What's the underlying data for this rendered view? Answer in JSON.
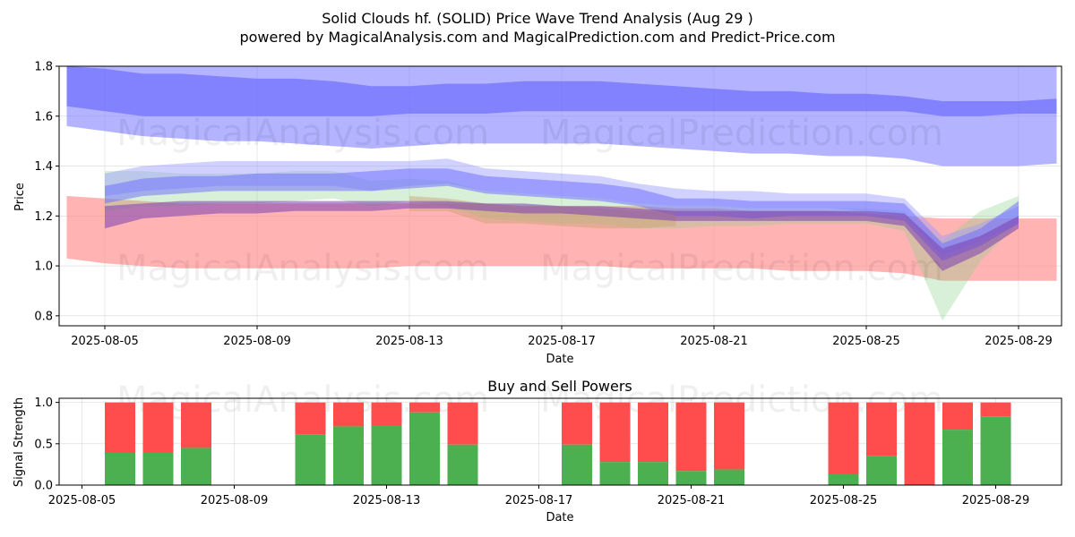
{
  "title": "Solid Clouds hf. (SOLID) Price Wave Trend Analysis (Aug 29 )",
  "subtitle": "powered by MagicalAnalysis.com and MagicalPrediction.com and Predict-Price.com",
  "watermarks": [
    "MagicalAnalysis.com",
    "MagicalPrediction.com"
  ],
  "colors": {
    "blue_band": "#4b4bff",
    "red_band": "#ff5c5c",
    "buy": "#4caf50",
    "sell": "#ff4d4d",
    "green_band": "#7ec87e"
  },
  "chart_data": [
    {
      "type": "area",
      "xlabel": "Date",
      "ylabel": "Price",
      "ylim": [
        0.76,
        1.8
      ],
      "xlim": [
        "2025-08-04",
        "2025-08-30"
      ],
      "x_ticks": [
        "2025-08-05",
        "2025-08-09",
        "2025-08-13",
        "2025-08-17",
        "2025-08-21",
        "2025-08-25",
        "2025-08-29"
      ],
      "y_ticks": [
        0.8,
        1.0,
        1.2,
        1.4,
        1.6,
        1.8
      ],
      "grid": true,
      "bands": [
        {
          "color": "#8080ff",
          "opacity": 0.6,
          "x": [
            "2025-08-04",
            "2025-08-05",
            "2025-08-06",
            "2025-08-07",
            "2025-08-08",
            "2025-08-09",
            "2025-08-10",
            "2025-08-11",
            "2025-08-12",
            "2025-08-13",
            "2025-08-14",
            "2025-08-15",
            "2025-08-16",
            "2025-08-17",
            "2025-08-18",
            "2025-08-19",
            "2025-08-20",
            "2025-08-21",
            "2025-08-22",
            "2025-08-23",
            "2025-08-24",
            "2025-08-25",
            "2025-08-26",
            "2025-08-27",
            "2025-08-28",
            "2025-08-29",
            "2025-08-30"
          ],
          "upper": [
            1.8,
            1.8,
            1.8,
            1.8,
            1.8,
            1.8,
            1.8,
            1.8,
            1.8,
            1.8,
            1.8,
            1.8,
            1.8,
            1.8,
            1.8,
            1.8,
            1.8,
            1.8,
            1.8,
            1.8,
            1.8,
            1.8,
            1.8,
            1.8,
            1.8,
            1.8,
            1.8
          ],
          "lower": [
            1.56,
            1.54,
            1.52,
            1.51,
            1.5,
            1.5,
            1.49,
            1.48,
            1.47,
            1.48,
            1.49,
            1.49,
            1.49,
            1.49,
            1.49,
            1.48,
            1.47,
            1.46,
            1.45,
            1.45,
            1.44,
            1.44,
            1.43,
            1.4,
            1.4,
            1.4,
            1.41
          ]
        },
        {
          "color": "#5a5aff",
          "opacity": 0.55,
          "x": [
            "2025-08-04",
            "2025-08-05",
            "2025-08-06",
            "2025-08-07",
            "2025-08-08",
            "2025-08-09",
            "2025-08-10",
            "2025-08-11",
            "2025-08-12",
            "2025-08-13",
            "2025-08-14",
            "2025-08-15",
            "2025-08-16",
            "2025-08-17",
            "2025-08-18",
            "2025-08-19",
            "2025-08-20",
            "2025-08-21",
            "2025-08-22",
            "2025-08-23",
            "2025-08-24",
            "2025-08-25",
            "2025-08-26",
            "2025-08-27",
            "2025-08-28",
            "2025-08-29",
            "2025-08-30"
          ],
          "upper": [
            1.8,
            1.79,
            1.77,
            1.77,
            1.76,
            1.75,
            1.75,
            1.74,
            1.72,
            1.72,
            1.73,
            1.73,
            1.74,
            1.74,
            1.74,
            1.73,
            1.72,
            1.71,
            1.7,
            1.7,
            1.69,
            1.69,
            1.68,
            1.66,
            1.66,
            1.66,
            1.67
          ],
          "lower": [
            1.64,
            1.62,
            1.6,
            1.6,
            1.6,
            1.6,
            1.6,
            1.6,
            1.6,
            1.61,
            1.61,
            1.61,
            1.62,
            1.62,
            1.62,
            1.62,
            1.62,
            1.62,
            1.62,
            1.62,
            1.62,
            1.62,
            1.62,
            1.6,
            1.6,
            1.61,
            1.61
          ]
        },
        {
          "color": "#ff8a8a",
          "opacity": 0.65,
          "x": [
            "2025-08-04",
            "2025-08-05",
            "2025-08-06",
            "2025-08-07",
            "2025-08-08",
            "2025-08-09",
            "2025-08-10",
            "2025-08-11",
            "2025-08-12",
            "2025-08-13",
            "2025-08-14",
            "2025-08-15",
            "2025-08-16",
            "2025-08-17",
            "2025-08-18",
            "2025-08-19",
            "2025-08-20",
            "2025-08-21",
            "2025-08-22",
            "2025-08-23",
            "2025-08-24",
            "2025-08-25",
            "2025-08-26",
            "2025-08-27",
            "2025-08-28",
            "2025-08-29",
            "2025-08-30"
          ],
          "upper": [
            1.28,
            1.27,
            1.26,
            1.25,
            1.25,
            1.25,
            1.25,
            1.25,
            1.25,
            1.25,
            1.25,
            1.25,
            1.24,
            1.24,
            1.24,
            1.24,
            1.23,
            1.23,
            1.22,
            1.22,
            1.22,
            1.21,
            1.2,
            1.19,
            1.19,
            1.19,
            1.19
          ],
          "lower": [
            1.03,
            1.01,
            1.0,
            0.99,
            0.99,
            0.99,
            0.99,
            0.99,
            0.99,
            1.0,
            1.0,
            1.0,
            1.0,
            1.0,
            1.0,
            0.99,
            0.99,
            0.99,
            0.99,
            0.98,
            0.98,
            0.98,
            0.97,
            0.94,
            0.94,
            0.94,
            0.94
          ]
        },
        {
          "color": "#8fd18f",
          "opacity": 0.35,
          "x": [
            "2025-08-05",
            "2025-08-06",
            "2025-08-07",
            "2025-08-08",
            "2025-08-09",
            "2025-08-10",
            "2025-08-11",
            "2025-08-12",
            "2025-08-13",
            "2025-08-14",
            "2025-08-15",
            "2025-08-16",
            "2025-08-17",
            "2025-08-18",
            "2025-08-19",
            "2025-08-20",
            "2025-08-21",
            "2025-08-22",
            "2025-08-23",
            "2025-08-24",
            "2025-08-25",
            "2025-08-26",
            "2025-08-27",
            "2025-08-28",
            "2025-08-29"
          ],
          "upper": [
            1.38,
            1.38,
            1.37,
            1.37,
            1.37,
            1.38,
            1.38,
            1.34,
            1.35,
            1.34,
            1.3,
            1.29,
            1.28,
            1.27,
            1.25,
            1.24,
            1.24,
            1.23,
            1.23,
            1.23,
            1.23,
            1.22,
            1.1,
            1.22,
            1.28
          ],
          "lower": [
            1.22,
            1.24,
            1.24,
            1.25,
            1.25,
            1.26,
            1.27,
            1.24,
            1.26,
            1.24,
            1.19,
            1.18,
            1.17,
            1.17,
            1.15,
            1.15,
            1.16,
            1.16,
            1.17,
            1.17,
            1.17,
            1.14,
            0.78,
            1.02,
            1.17
          ]
        },
        {
          "color": "#9a9aff",
          "opacity": 0.45,
          "x": [
            "2025-08-05",
            "2025-08-06",
            "2025-08-07",
            "2025-08-08",
            "2025-08-09",
            "2025-08-10",
            "2025-08-11",
            "2025-08-12",
            "2025-08-13",
            "2025-08-14",
            "2025-08-15",
            "2025-08-16",
            "2025-08-17",
            "2025-08-18",
            "2025-08-19",
            "2025-08-20",
            "2025-08-21",
            "2025-08-22",
            "2025-08-23",
            "2025-08-24",
            "2025-08-25",
            "2025-08-26",
            "2025-08-27",
            "2025-08-28",
            "2025-08-29"
          ],
          "upper": [
            1.37,
            1.4,
            1.41,
            1.42,
            1.42,
            1.42,
            1.42,
            1.42,
            1.42,
            1.43,
            1.39,
            1.38,
            1.37,
            1.36,
            1.33,
            1.31,
            1.3,
            1.3,
            1.29,
            1.29,
            1.29,
            1.27,
            1.12,
            1.17,
            1.24
          ],
          "lower": [
            1.28,
            1.3,
            1.31,
            1.32,
            1.32,
            1.32,
            1.32,
            1.3,
            1.32,
            1.33,
            1.3,
            1.29,
            1.28,
            1.27,
            1.25,
            1.24,
            1.24,
            1.23,
            1.23,
            1.23,
            1.22,
            1.2,
            1.04,
            1.1,
            1.17
          ]
        },
        {
          "color": "#6a6aff",
          "opacity": 0.5,
          "x": [
            "2025-08-05",
            "2025-08-06",
            "2025-08-07",
            "2025-08-08",
            "2025-08-09",
            "2025-08-10",
            "2025-08-11",
            "2025-08-12",
            "2025-08-13",
            "2025-08-14",
            "2025-08-15",
            "2025-08-16",
            "2025-08-17",
            "2025-08-18",
            "2025-08-19",
            "2025-08-20",
            "2025-08-21",
            "2025-08-22",
            "2025-08-23",
            "2025-08-24",
            "2025-08-25",
            "2025-08-26",
            "2025-08-27",
            "2025-08-28",
            "2025-08-29"
          ],
          "upper": [
            1.32,
            1.35,
            1.36,
            1.36,
            1.37,
            1.37,
            1.37,
            1.38,
            1.39,
            1.39,
            1.36,
            1.35,
            1.34,
            1.33,
            1.31,
            1.27,
            1.27,
            1.26,
            1.26,
            1.26,
            1.26,
            1.25,
            1.09,
            1.15,
            1.26
          ],
          "lower": [
            1.25,
            1.28,
            1.29,
            1.3,
            1.3,
            1.3,
            1.3,
            1.3,
            1.31,
            1.32,
            1.29,
            1.28,
            1.27,
            1.26,
            1.24,
            1.2,
            1.2,
            1.19,
            1.2,
            1.2,
            1.2,
            1.18,
            1.02,
            1.08,
            1.17
          ]
        },
        {
          "color": "#c9a070",
          "opacity": 0.45,
          "x": [
            "2025-08-13",
            "2025-08-14",
            "2025-08-15",
            "2025-08-16",
            "2025-08-17",
            "2025-08-18",
            "2025-08-19",
            "2025-08-20"
          ],
          "upper": [
            1.28,
            1.27,
            1.25,
            1.24,
            1.24,
            1.23,
            1.22,
            1.22
          ],
          "lower": [
            1.22,
            1.22,
            1.17,
            1.17,
            1.16,
            1.15,
            1.15,
            1.16
          ]
        },
        {
          "color": "#7a3fb0",
          "opacity": 0.55,
          "x": [
            "2025-08-05",
            "2025-08-06",
            "2025-08-07",
            "2025-08-08",
            "2025-08-09",
            "2025-08-10",
            "2025-08-11",
            "2025-08-12",
            "2025-08-13",
            "2025-08-14",
            "2025-08-15",
            "2025-08-16",
            "2025-08-17",
            "2025-08-18",
            "2025-08-19",
            "2025-08-20",
            "2025-08-21",
            "2025-08-22",
            "2025-08-23",
            "2025-08-24",
            "2025-08-25",
            "2025-08-26",
            "2025-08-27",
            "2025-08-28",
            "2025-08-29"
          ],
          "upper": [
            1.24,
            1.25,
            1.26,
            1.26,
            1.26,
            1.26,
            1.26,
            1.26,
            1.26,
            1.26,
            1.25,
            1.25,
            1.24,
            1.24,
            1.23,
            1.22,
            1.22,
            1.22,
            1.22,
            1.22,
            1.22,
            1.21,
            1.07,
            1.12,
            1.2
          ],
          "lower": [
            1.15,
            1.19,
            1.2,
            1.21,
            1.21,
            1.22,
            1.22,
            1.22,
            1.23,
            1.23,
            1.22,
            1.21,
            1.21,
            1.2,
            1.19,
            1.18,
            1.18,
            1.18,
            1.18,
            1.18,
            1.18,
            1.16,
            0.98,
            1.05,
            1.15
          ]
        }
      ]
    },
    {
      "type": "bar",
      "title": "Buy and Sell Powers",
      "xlabel": "Date",
      "ylabel": "Signal Strength",
      "ylim": [
        0,
        1.05
      ],
      "y_ticks": [
        0.0,
        0.5,
        1.0
      ],
      "x_ticks": [
        "2025-08-05",
        "2025-08-09",
        "2025-08-13",
        "2025-08-17",
        "2025-08-21",
        "2025-08-25",
        "2025-08-29"
      ],
      "grid": true,
      "series": [
        {
          "name": "Buy",
          "color": "#4caf50"
        },
        {
          "name": "Sell",
          "color": "#ff4d4d"
        }
      ],
      "bars": [
        {
          "date": "2025-08-06",
          "buy": 0.39
        },
        {
          "date": "2025-08-07",
          "buy": 0.39
        },
        {
          "date": "2025-08-08",
          "buy": 0.45
        },
        {
          "date": "2025-08-11",
          "buy": 0.61
        },
        {
          "date": "2025-08-12",
          "buy": 0.71
        },
        {
          "date": "2025-08-13",
          "buy": 0.72
        },
        {
          "date": "2025-08-14",
          "buy": 0.88
        },
        {
          "date": "2025-08-15",
          "buy": 0.49
        },
        {
          "date": "2025-08-18",
          "buy": 0.49
        },
        {
          "date": "2025-08-19",
          "buy": 0.28
        },
        {
          "date": "2025-08-20",
          "buy": 0.28
        },
        {
          "date": "2025-08-21",
          "buy": 0.17
        },
        {
          "date": "2025-08-22",
          "buy": 0.19
        },
        {
          "date": "2025-08-25",
          "buy": 0.13
        },
        {
          "date": "2025-08-26",
          "buy": 0.35
        },
        {
          "date": "2025-08-27",
          "buy": 0.0
        },
        {
          "date": "2025-08-28",
          "buy": 0.67
        },
        {
          "date": "2025-08-29",
          "buy": 0.83
        }
      ]
    }
  ]
}
